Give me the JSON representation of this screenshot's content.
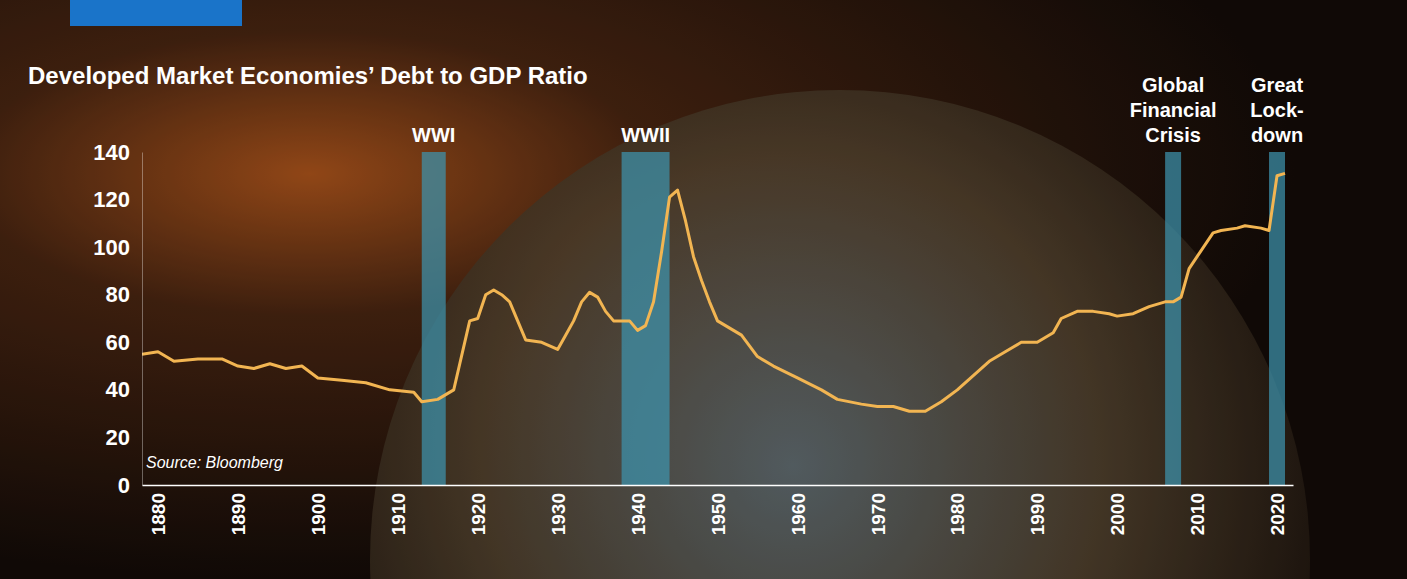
{
  "chart_data": {
    "type": "line",
    "title": "Developed Market Economies’ Debt to GDP Ratio",
    "source": "Source: Bloomberg",
    "x": [
      1878,
      1880,
      1882,
      1885,
      1888,
      1890,
      1892,
      1894,
      1896,
      1898,
      1900,
      1903,
      1906,
      1909,
      1912,
      1913,
      1915,
      1917,
      1919,
      1920,
      1921,
      1922,
      1923,
      1924,
      1925,
      1926,
      1928,
      1930,
      1931,
      1932,
      1933,
      1934,
      1935,
      1936,
      1937,
      1939,
      1940,
      1941,
      1942,
      1943,
      1944,
      1945,
      1946,
      1947,
      1948,
      1949,
      1950,
      1951,
      1952,
      1953,
      1955,
      1957,
      1960,
      1963,
      1965,
      1968,
      1970,
      1972,
      1974,
      1976,
      1978,
      1980,
      1982,
      1984,
      1986,
      1988,
      1990,
      1992,
      1993,
      1995,
      1997,
      1999,
      2000,
      2002,
      2004,
      2006,
      2007,
      2008,
      2009,
      2010,
      2012,
      2013,
      2015,
      2016,
      2018,
      2019,
      2020,
      2021
    ],
    "values": [
      55,
      56,
      52,
      53,
      53,
      50,
      49,
      51,
      49,
      50,
      45,
      44,
      43,
      40,
      39,
      35,
      36,
      40,
      69,
      70,
      80,
      82,
      80,
      77,
      69,
      61,
      60,
      57,
      63,
      69,
      77,
      81,
      79,
      73,
      69,
      69,
      65,
      67,
      77,
      98,
      121,
      124,
      111,
      96,
      86,
      77,
      69,
      67,
      65,
      63,
      54,
      50,
      45,
      40,
      36,
      34,
      33,
      33,
      31,
      31,
      35,
      40,
      46,
      52,
      56,
      60,
      60,
      64,
      70,
      73,
      73,
      72,
      71,
      72,
      75,
      77,
      77,
      79,
      91,
      96,
      106,
      107,
      108,
      109,
      108,
      107,
      130,
      131
    ],
    "color": "#f2b552",
    "xlim": [
      1878,
      2022
    ],
    "xticks": [
      1880,
      1890,
      1900,
      1910,
      1920,
      1930,
      1940,
      1950,
      1960,
      1970,
      1980,
      1990,
      2000,
      2010,
      2020
    ],
    "ylim": [
      0,
      140
    ],
    "yticks": [
      0,
      20,
      40,
      60,
      80,
      100,
      120,
      140
    ],
    "grid": false,
    "shaded_periods": [
      {
        "lines": [
          "WWI"
        ],
        "start": 1913,
        "end": 1916
      },
      {
        "lines": [
          "WWII"
        ],
        "start": 1938,
        "end": 1944
      },
      {
        "lines": [
          "Global",
          "Financial",
          "Crisis"
        ],
        "start": 2006,
        "end": 2008
      },
      {
        "lines": [
          "Great",
          "Lock-",
          "down"
        ],
        "start": 2019,
        "end": 2021
      }
    ]
  }
}
